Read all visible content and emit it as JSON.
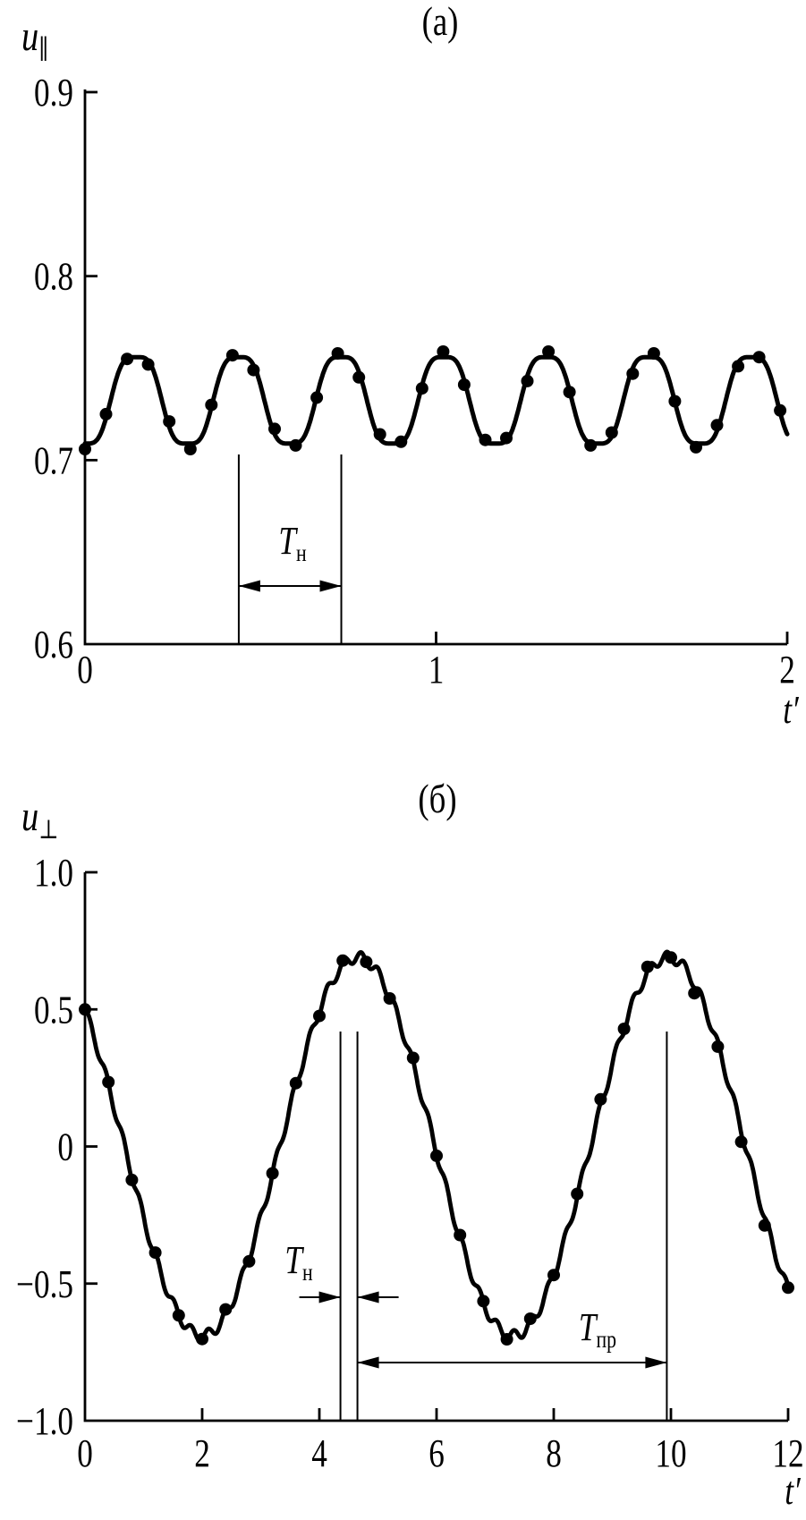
{
  "figure": {
    "background": "#ffffff",
    "ink_color": "#000000"
  },
  "chart_data": [
    {
      "id": "a",
      "type": "line",
      "title": "(a)",
      "ylabel_base": "u",
      "ylabel_sub": "∥",
      "xlabel": "t′",
      "xlim": [
        0,
        2
      ],
      "ylim": [
        0.6,
        0.9
      ],
      "grid": false,
      "x_tick_values": [
        0,
        1,
        2
      ],
      "x_tick_labels": [
        "0",
        "1",
        "2"
      ],
      "y_tick_values": [
        0.9,
        0.8,
        0.7,
        0.6
      ],
      "y_tick_labels": [
        "0.9",
        "0.8",
        "0.7",
        "0.6"
      ],
      "curve_model": {
        "mean": 0.7325,
        "amplitude": 0.0265,
        "period": 0.292,
        "ripple_amplitude": 0.003,
        "formula": "u = mean - amplitude*cos(2*pi*t/period) + ripple_amplitude*cos(6*pi*t/period)"
      },
      "points_t": [
        0.0,
        0.06,
        0.12,
        0.18,
        0.24,
        0.3,
        0.36,
        0.42,
        0.48,
        0.54,
        0.6,
        0.66,
        0.72,
        0.78,
        0.84,
        0.9,
        0.96,
        1.02,
        1.08,
        1.14,
        1.2,
        1.26,
        1.32,
        1.38,
        1.44,
        1.5,
        1.56,
        1.62,
        1.68,
        1.74,
        1.8,
        1.86,
        1.92,
        1.98
      ],
      "points_u": [
        0.706,
        0.725,
        0.755,
        0.752,
        0.721,
        0.706,
        0.73,
        0.757,
        0.749,
        0.717,
        0.708,
        0.734,
        0.758,
        0.745,
        0.714,
        0.71,
        0.739,
        0.759,
        0.741,
        0.711,
        0.712,
        0.743,
        0.759,
        0.737,
        0.708,
        0.715,
        0.747,
        0.758,
        0.732,
        0.707,
        0.719,
        0.751,
        0.756,
        0.727
      ],
      "annotations": [
        {
          "label_base": "T",
          "label_sub": "н",
          "t_left": 0.438,
          "t_right": 0.73
        }
      ]
    },
    {
      "id": "b",
      "type": "line",
      "title": "(б)",
      "ylabel_base": "u",
      "ylabel_sub": "⊥",
      "xlabel": "t′",
      "xlim": [
        0,
        12
      ],
      "ylim": [
        -1.0,
        1.0
      ],
      "grid": false,
      "x_tick_values": [
        0,
        2,
        4,
        6,
        8,
        10,
        12
      ],
      "x_tick_labels": [
        "0",
        "2",
        "4",
        "6",
        "8",
        "10",
        "12"
      ],
      "y_tick_values": [
        1.0,
        0.5,
        0,
        -0.5,
        -1.0
      ],
      "y_tick_labels": [
        "1.0",
        "0.5",
        "0",
        "−0.5",
        "−1.0"
      ],
      "curve_model": {
        "amplitude": 0.69,
        "period_slow": 5.3,
        "phase_min_t": 2.0,
        "ripple_amplitude": 0.02,
        "ripple_period": 0.29,
        "formula": "u = -amplitude*cos(2*pi*(t-phase_min_t)/period_slow) + ripple_amplitude*sin(2*pi*t/ripple_period)"
      },
      "points_t": [
        0,
        0.4,
        0.8,
        1.2,
        1.6,
        2.0,
        2.4,
        2.8,
        3.2,
        3.6,
        4.0,
        4.4,
        4.8,
        5.2,
        5.6,
        6.0,
        6.4,
        6.8,
        7.2,
        7.6,
        8.0,
        8.4,
        8.8,
        9.2,
        9.6,
        10.0,
        10.4,
        10.8,
        11.2,
        11.6,
        12.0
      ],
      "points_u": [
        0.5,
        0.235,
        -0.122,
        -0.387,
        -0.616,
        -0.702,
        -0.594,
        -0.419,
        -0.098,
        0.231,
        0.476,
        0.678,
        0.673,
        0.54,
        0.323,
        -0.034,
        -0.323,
        -0.564,
        -0.703,
        -0.628,
        -0.469,
        -0.173,
        0.172,
        0.429,
        0.655,
        0.689,
        0.559,
        0.364,
        0.017,
        -0.288,
        -0.515
      ],
      "annotations": [
        {
          "label_base": "T",
          "label_sub": "н",
          "t_left": 4.36,
          "t_right": 4.65
        },
        {
          "label_base": "T",
          "label_sub": "пр",
          "t_left": 4.65,
          "t_right": 9.93
        }
      ]
    }
  ]
}
